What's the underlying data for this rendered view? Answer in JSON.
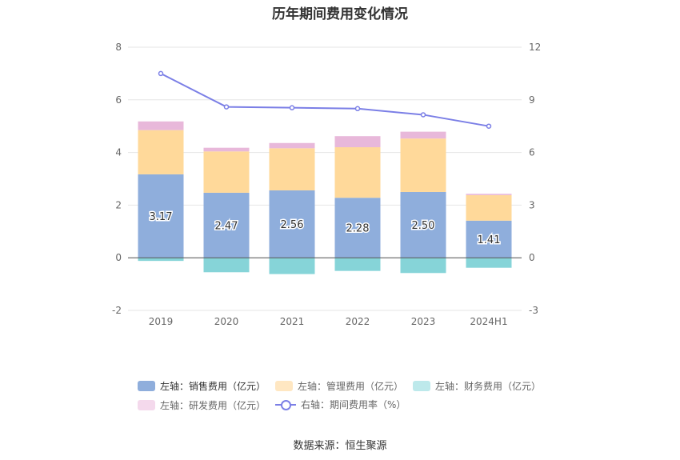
{
  "title": "历年期间费用变化情况",
  "source": "数据来源：恒生聚源",
  "colors": {
    "sales": "#8FAEDC",
    "admin": "#FFD99A",
    "finance": "#86D4D8",
    "rd": "#E8B8DA",
    "rate_line": "#7B7FE6"
  },
  "legend": [
    {
      "label": "左轴：销售费用（亿元）",
      "key": "sales",
      "color": "#8FAEDC"
    },
    {
      "label": "左轴：管理费用（亿元）",
      "key": "admin",
      "color": "#FFE7C2"
    },
    {
      "label": "左轴：财务费用（亿元）",
      "key": "finance",
      "color": "#BDE9EB"
    },
    {
      "label": "左轴：研发费用（亿元）",
      "key": "rd",
      "color": "#F4D9EC"
    },
    {
      "label": "右轴：期间费用率（%）",
      "key": "rate",
      "color": "#7B7FE6"
    }
  ],
  "chart_data": {
    "type": "bar",
    "stacked": true,
    "categories": [
      "2019",
      "2020",
      "2021",
      "2022",
      "2023",
      "2024H1"
    ],
    "series": [
      {
        "name": "左轴：销售费用（亿元）",
        "axis": "left",
        "values": [
          3.17,
          2.47,
          2.56,
          2.28,
          2.5,
          1.41
        ],
        "labels": [
          "3.17",
          "2.47",
          "2.56",
          "2.28",
          "2.50",
          "1.41"
        ]
      },
      {
        "name": "左轴：管理费用（亿元）",
        "axis": "left",
        "values": [
          1.68,
          1.57,
          1.6,
          1.92,
          2.03,
          0.97
        ]
      },
      {
        "name": "左轴：财务费用（亿元）",
        "axis": "left",
        "values": [
          -0.12,
          -0.55,
          -0.62,
          -0.5,
          -0.58,
          -0.38
        ]
      },
      {
        "name": "左轴：研发费用（亿元）",
        "axis": "left",
        "values": [
          0.33,
          0.14,
          0.2,
          0.42,
          0.26,
          0.05
        ]
      },
      {
        "name": "右轴：期间费用率（%）",
        "axis": "right",
        "type": "line",
        "values": [
          10.5,
          8.6,
          8.55,
          8.5,
          8.15,
          7.5
        ]
      }
    ],
    "left_axis": {
      "min": -2,
      "max": 8,
      "ticks": [
        "-2",
        "0",
        "2",
        "4",
        "6",
        "8"
      ]
    },
    "right_axis": {
      "min": -3,
      "max": 12,
      "ticks": [
        "-3",
        "0",
        "3",
        "6",
        "9",
        "12"
      ]
    },
    "grid": true,
    "legend_position": "bottom"
  }
}
